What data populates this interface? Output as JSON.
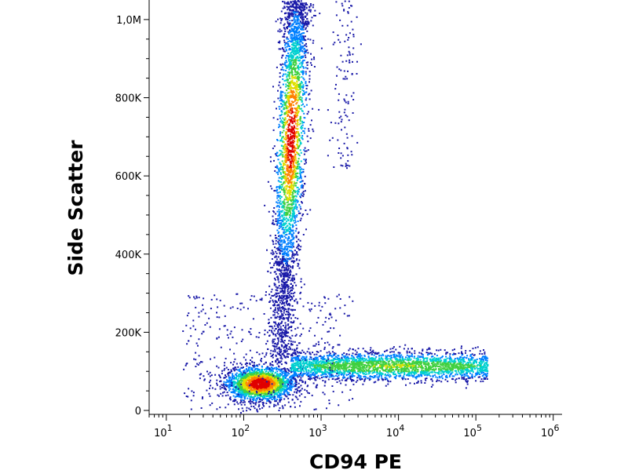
{
  "chart_data": {
    "type": "scatter",
    "subtype": "flow-cytometry-density-dot-plot",
    "xlabel": "CD94 PE",
    "ylabel": "Side Scatter",
    "x_scale": "log",
    "xlim": [
      6,
      1300000
    ],
    "ylim": [
      -10000,
      1050000
    ],
    "x_ticks": [
      {
        "value": 10,
        "base": "10",
        "exp": "1"
      },
      {
        "value": 100,
        "base": "10",
        "exp": "2"
      },
      {
        "value": 1000,
        "base": "10",
        "exp": "3"
      },
      {
        "value": 10000,
        "base": "10",
        "exp": "4"
      },
      {
        "value": 100000,
        "base": "10",
        "exp": "5"
      },
      {
        "value": 1000000,
        "base": "10",
        "exp": "6"
      }
    ],
    "y_ticks": [
      {
        "value": 0,
        "label": "0"
      },
      {
        "value": 200000,
        "label": "200K"
      },
      {
        "value": 400000,
        "label": "400K"
      },
      {
        "value": 600000,
        "label": "600K"
      },
      {
        "value": 800000,
        "label": "800K"
      },
      {
        "value": 1000000,
        "label": "1,0M"
      }
    ],
    "grid": false,
    "colors": {
      "density_scale": [
        "#1a1aa8",
        "#0080ff",
        "#00d0d0",
        "#40d040",
        "#e0e000",
        "#ff8000",
        "#e00000"
      ],
      "axis": "#000000"
    },
    "populations": [
      {
        "name": "",
        "x_center": 160,
        "y_center": 70000,
        "x_spread_decades": 0.22,
        "y_spread": 22000,
        "count": 2200,
        "peak_density": 1.0
      },
      {
        "name": "",
        "x_start": 300,
        "x_end": 480,
        "y_start": 120000,
        "y_end": 1050000,
        "count": 3200,
        "peak_y": 700000,
        "peak_density": 0.95
      },
      {
        "name": "",
        "x_start": 400,
        "x_end": 140000,
        "y_center": 115000,
        "y_spread": 18000,
        "count": 2600,
        "peak_density": 0.55
      },
      {
        "name": "",
        "x_center": 2000,
        "y_start": 620000,
        "y_end": 1050000,
        "count": 120,
        "peak_density": 0.1
      }
    ]
  }
}
